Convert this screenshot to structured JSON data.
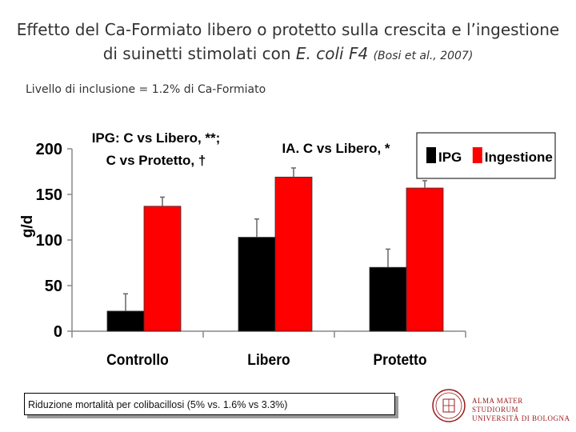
{
  "slide": {
    "title_line1": "Effetto del Ca-Formiato libero o protetto sulla crescita e l’ingestione",
    "title_line2_prefix": "di suinetti stimolati con ",
    "title_line2_italic": "E. coli F4",
    "title_line2_cite": "(Bosi et al., 2007)",
    "subtitle": "Livello di inclusione = 1.2%  di Ca-Formiato",
    "note": "Riduzione mortalità per colibacillosi (5% vs. 1.6% vs 3.3%)",
    "logo": {
      "line1": "ALMA MATER STUDIORUM",
      "line2": "UNIVERSITÀ DI BOLOGNA",
      "color": "#9a1a1a"
    }
  },
  "chart_data": {
    "type": "bar",
    "categories": [
      "Controllo",
      "Libero",
      "Protetto"
    ],
    "series": [
      {
        "name": "IPG",
        "values": [
          22,
          103,
          70
        ],
        "errors": [
          19,
          20,
          20
        ],
        "color": "#000000"
      },
      {
        "name": "Ingestione",
        "values": [
          137,
          169,
          157
        ],
        "errors": [
          10,
          10,
          8
        ],
        "color": "#ff0000"
      }
    ],
    "ylabel": "g/d",
    "ylim": [
      0,
      200
    ],
    "yticks": [
      0,
      50,
      100,
      150,
      200
    ],
    "grid": false,
    "legend_position": "top-right",
    "annotations": [
      {
        "lines": [
          "IPG:  C vs Libero, **;",
          "C vs Protetto, †"
        ]
      },
      {
        "lines": [
          "IA.  C vs Libero, *"
        ]
      }
    ]
  }
}
